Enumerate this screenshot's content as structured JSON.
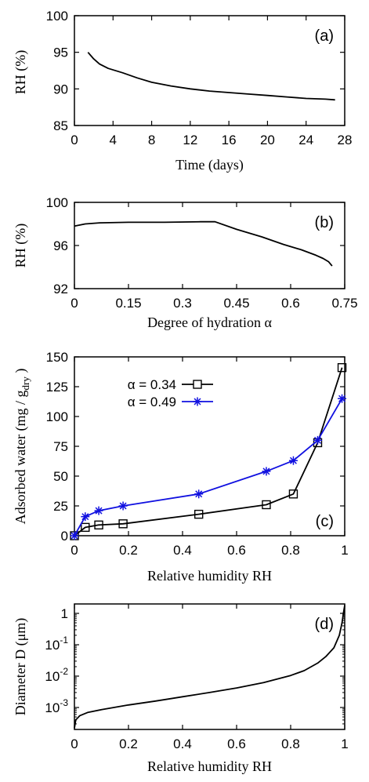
{
  "chart_data": [
    {
      "type": "line",
      "panel_label": "(a)",
      "xlabel": "Time (days)",
      "ylabel": "RH (%)",
      "xlim": [
        0,
        28
      ],
      "ylim": [
        85,
        100
      ],
      "xticks": [
        0,
        4,
        8,
        12,
        16,
        20,
        24,
        28
      ],
      "yticks": [
        85,
        90,
        95,
        100
      ],
      "grid": false,
      "series": [
        {
          "color": "#000000",
          "x": [
            1.4,
            2.0,
            2.6,
            3.5,
            5.0,
            6.5,
            8.0,
            10.0,
            12.0,
            14.0,
            16.0,
            18.0,
            20.0,
            22.0,
            24.0,
            26.0,
            27.0
          ],
          "y": [
            95.0,
            94.1,
            93.4,
            92.8,
            92.2,
            91.5,
            90.9,
            90.4,
            90.0,
            89.7,
            89.5,
            89.3,
            89.1,
            88.9,
            88.7,
            88.6,
            88.5
          ]
        }
      ]
    },
    {
      "type": "line",
      "panel_label": "(b)",
      "xlabel": "Degree of hydration α",
      "ylabel": "RH (%)",
      "xlim": [
        0,
        0.75
      ],
      "ylim": [
        92,
        100
      ],
      "xticks": [
        "0",
        "0.15",
        "0.3",
        "0.45",
        "0.6",
        "0.75"
      ],
      "xtick_values": [
        0,
        0.15,
        0.3,
        0.45,
        0.6,
        0.75
      ],
      "yticks": [
        92,
        96,
        100
      ],
      "grid": false,
      "series": [
        {
          "color": "#000000",
          "x": [
            0,
            0.03,
            0.07,
            0.15,
            0.25,
            0.35,
            0.39,
            0.45,
            0.52,
            0.58,
            0.63,
            0.67,
            0.69,
            0.705,
            0.715
          ],
          "y": [
            97.8,
            98.0,
            98.1,
            98.15,
            98.15,
            98.2,
            98.2,
            97.5,
            96.8,
            96.1,
            95.6,
            95.1,
            94.8,
            94.5,
            94.1
          ]
        }
      ]
    },
    {
      "type": "line",
      "panel_label": "(c)",
      "xlabel": "Relative humidity RH",
      "ylabel": "Adsorbed water (mg / g",
      "ylabel_sub": "dry",
      "ylabel_end": " )",
      "xlim": [
        0,
        1
      ],
      "ylim": [
        0,
        150
      ],
      "xticks": [
        "0",
        "0.2",
        "0.4",
        "0.6",
        "0.8",
        "1"
      ],
      "xtick_values": [
        0,
        0.2,
        0.4,
        0.6,
        0.8,
        1.0
      ],
      "yticks": [
        0,
        25,
        50,
        75,
        100,
        125,
        150
      ],
      "grid": false,
      "legend_position": "top-left",
      "series": [
        {
          "name": "α = 0.34",
          "color": "#000000",
          "marker": "square",
          "x": [
            0.0,
            0.04,
            0.09,
            0.18,
            0.46,
            0.71,
            0.81,
            0.9,
            0.99
          ],
          "y": [
            0,
            7,
            9,
            10,
            18,
            26,
            35,
            78,
            141
          ]
        },
        {
          "name": "α = 0.49",
          "color": "#1010e0",
          "marker": "star",
          "x": [
            0.0,
            0.04,
            0.09,
            0.18,
            0.46,
            0.71,
            0.81,
            0.9,
            0.99
          ],
          "y": [
            0,
            16,
            21,
            25,
            35,
            54,
            63,
            80,
            115
          ]
        }
      ]
    },
    {
      "type": "line",
      "panel_label": "(d)",
      "xlabel": "Relative humidity RH",
      "ylabel": "Diameter D (μm)",
      "xlim": [
        0,
        1
      ],
      "ylim_log10": [
        -3.7,
        0.3
      ],
      "yscale": "log",
      "xticks": [
        "0",
        "0.2",
        "0.4",
        "0.6",
        "0.8",
        "1"
      ],
      "xtick_values": [
        0,
        0.2,
        0.4,
        0.6,
        0.8,
        1.0
      ],
      "yticks": [
        "10",
        "10",
        "10",
        "1"
      ],
      "ytick_exponents": [
        "-3",
        "-2",
        "-1",
        ""
      ],
      "ytick_values": [
        0.001,
        0.01,
        0.1,
        1
      ],
      "grid": false,
      "series": [
        {
          "color": "#000000",
          "x": [
            0.0,
            0.005,
            0.02,
            0.05,
            0.1,
            0.2,
            0.3,
            0.4,
            0.5,
            0.6,
            0.7,
            0.8,
            0.85,
            0.9,
            0.93,
            0.96,
            0.98,
            0.99,
            0.995,
            1.0
          ],
          "y": [
            0.00022,
            0.0004,
            0.00055,
            0.0007,
            0.00085,
            0.0012,
            0.0016,
            0.0022,
            0.003,
            0.0042,
            0.0062,
            0.0105,
            0.015,
            0.026,
            0.042,
            0.08,
            0.2,
            0.5,
            1.0,
            1.8
          ]
        }
      ]
    }
  ]
}
